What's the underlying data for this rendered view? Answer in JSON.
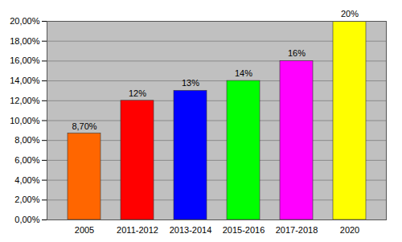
{
  "chart_data": {
    "type": "bar",
    "categories": [
      "2005",
      "2011-2012",
      "2013-2014",
      "2015-2016",
      "2017-2018",
      "2020"
    ],
    "values": [
      8.7,
      12,
      13,
      14,
      16,
      20
    ],
    "value_labels": [
      "8,70%",
      "12%",
      "13%",
      "14%",
      "16%",
      "20%"
    ],
    "colors": [
      "#ff6600",
      "#ff0000",
      "#0000ff",
      "#00ff00",
      "#ff00ff",
      "#ffff00"
    ],
    "ylim": [
      0,
      20
    ],
    "yticks": [
      {
        "value": 0,
        "label": "0,00%"
      },
      {
        "value": 2,
        "label": "2,00%"
      },
      {
        "value": 4,
        "label": "4,00%"
      },
      {
        "value": 6,
        "label": "6,00%"
      },
      {
        "value": 8,
        "label": "8,00%"
      },
      {
        "value": 10,
        "label": "10,00%"
      },
      {
        "value": 12,
        "label": "12,00%"
      },
      {
        "value": 14,
        "label": "14,00%"
      },
      {
        "value": 16,
        "label": "16,00%"
      },
      {
        "value": 18,
        "label": "18,00%"
      },
      {
        "value": 20,
        "label": "20,00%"
      }
    ],
    "grid": true,
    "data_labels": true
  }
}
